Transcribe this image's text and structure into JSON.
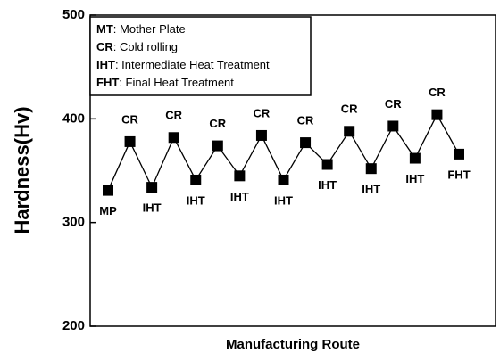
{
  "chart_data": {
    "type": "line",
    "y_label": "Hardness(Hv)",
    "x_label": "Manufacturing Route",
    "categories": [
      "MP",
      "CR",
      "IHT",
      "CR",
      "IHT",
      "CR",
      "IHT",
      "CR",
      "IHT",
      "CR",
      "IHT",
      "CR",
      "IHT",
      "CR",
      "IHT",
      "CR",
      "FHT"
    ],
    "values": [
      331,
      378,
      334,
      382,
      341,
      374,
      345,
      384,
      341,
      377,
      356,
      388,
      352,
      393,
      362,
      404,
      366
    ],
    "color": "#000000",
    "ylim": [
      200,
      500
    ],
    "yticks": [
      200,
      300,
      400,
      500
    ],
    "notes": [
      {
        "abbr": "MT",
        "text": ": Mother Plate"
      },
      {
        "abbr": "CR",
        "text": ": Cold rolling"
      },
      {
        "abbr": "IHT",
        "text": ": Intermediate Heat Treatment"
      },
      {
        "abbr": "FHT",
        "text": ": Final Heat Treatment"
      }
    ]
  }
}
